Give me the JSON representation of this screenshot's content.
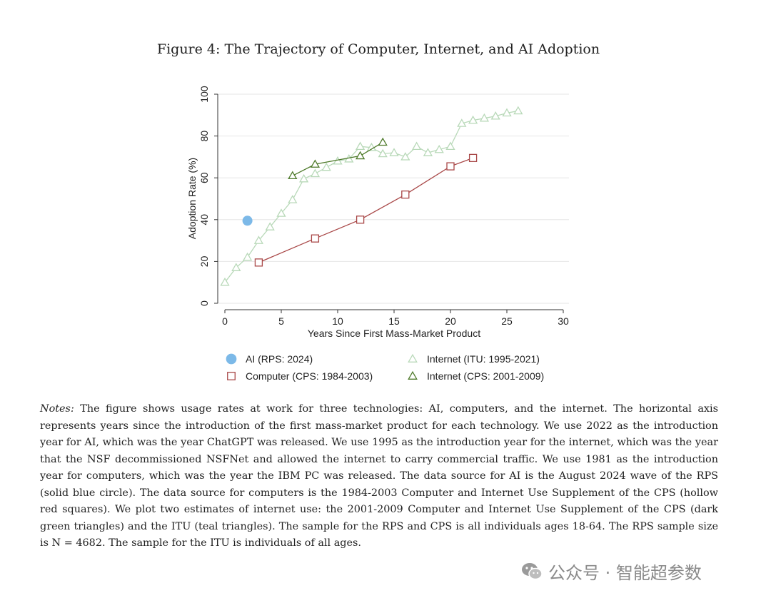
{
  "figure": {
    "title": "Figure 4: The Trajectory of Computer, Internet, and AI Adoption"
  },
  "chart_data": {
    "type": "scatter",
    "xlabel": "Years Since First Mass-Market Product",
    "ylabel": "Adoption Rate  (%)",
    "xlim": [
      0,
      30
    ],
    "ylim": [
      0,
      100
    ],
    "xticks": [
      0,
      5,
      10,
      15,
      20,
      25,
      30
    ],
    "yticks": [
      0,
      20,
      40,
      60,
      80,
      100
    ],
    "grid": true,
    "legend_position": "bottom",
    "series": [
      {
        "name": "AI (RPS: 2024)",
        "marker": "circle-filled",
        "color": "#7cb9e8",
        "connected": false,
        "x": [
          2
        ],
        "y": [
          39.5
        ]
      },
      {
        "name": "Internet (ITU: 1995-2021)",
        "marker": "triangle-hollow",
        "color": "#b9d9b9",
        "connected": true,
        "x": [
          0,
          1,
          2,
          3,
          4,
          5,
          6,
          7,
          8,
          9,
          10,
          11,
          12,
          13,
          14,
          15,
          16,
          17,
          18,
          19,
          20,
          21,
          22,
          23,
          24,
          25,
          26
        ],
        "y": [
          10,
          17,
          22,
          30,
          36.5,
          43,
          49.5,
          59.5,
          62,
          65,
          68,
          69,
          75,
          74.5,
          71.5,
          72,
          70,
          75,
          72,
          73.5,
          75,
          86,
          87.5,
          88.5,
          89.5,
          91,
          92
        ]
      },
      {
        "name": "Computer (CPS: 1984-2003)",
        "marker": "square-hollow",
        "color": "#a94848",
        "connected": true,
        "x": [
          3,
          8,
          12,
          16,
          20,
          22
        ],
        "y": [
          19.5,
          31,
          40,
          52,
          65.5,
          69.5
        ]
      },
      {
        "name": "Internet (CPS: 2001-2009)",
        "marker": "triangle-hollow",
        "color": "#4e7a2a",
        "connected": true,
        "x": [
          6,
          8,
          12,
          14
        ],
        "y": [
          61,
          66.5,
          70.5,
          77
        ]
      }
    ]
  },
  "notes": {
    "label": "Notes:",
    "text": "The figure shows usage rates at work for three technologies: AI, computers, and the internet. The horizontal axis represents years since the introduction of the first mass-market product for each technology. We use 2022 as the introduction year for AI, which was the year ChatGPT was released. We use 1995 as the introduction year for the internet, which was the year that the NSF decommissioned NSFNet and allowed the internet to carry commercial traffic. We use 1981 as the introduction year for computers, which was the year the IBM PC was released. The data source for AI is the August 2024 wave of the RPS (solid blue circle). The data source for computers is the 1984-2003 Computer and Internet Use Supplement of the CPS (hollow red squares). We plot two estimates of internet use: the 2001-2009 Computer and Internet Use Supplement of the CPS (dark green triangles) and the ITU (teal triangles). The sample for the RPS and CPS is all individuals ages 18-64. The RPS sample size is N = 4682. The sample for the ITU is individuals of all ages."
  },
  "watermark": {
    "text": "公众号 · 智能超参数",
    "icon": "wechat-icon"
  }
}
